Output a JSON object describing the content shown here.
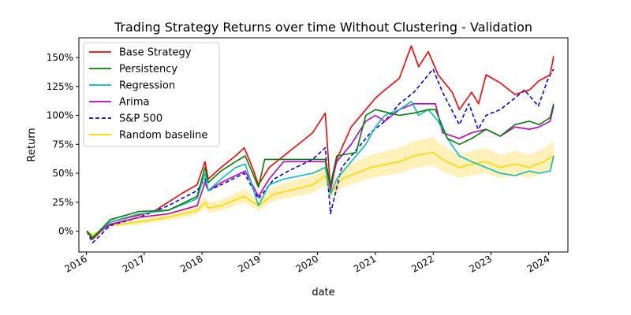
{
  "chart_data": {
    "type": "line",
    "title": "Trading Strategy Returns over time Without Clustering - Validation",
    "xlabel": "date",
    "ylabel": "Return",
    "x_range": [
      "2015-11-15",
      "2024-05-01"
    ],
    "ylim": [
      -0.18,
      1.67
    ],
    "x_ticks": [
      "2016",
      "2017",
      "2018",
      "2019",
      "2020",
      "2021",
      "2022",
      "2023",
      "2024"
    ],
    "y_ticks": [
      {
        "value": 0,
        "label": "0%"
      },
      {
        "value": 0.25,
        "label": "25%"
      },
      {
        "value": 0.5,
        "label": "50%"
      },
      {
        "value": 0.75,
        "label": "75%"
      },
      {
        "value": 1.0,
        "label": "100%"
      },
      {
        "value": 1.25,
        "label": "125%"
      },
      {
        "value": 1.5,
        "label": "150%"
      }
    ],
    "grid": false,
    "legend_position": "top-left",
    "series": [
      {
        "name": "Base Strategy",
        "color": "#ff0000",
        "style": "solid",
        "points": [
          [
            "2016-01-04",
            0.0
          ],
          [
            "2016-02-10",
            -0.07
          ],
          [
            "2016-06-01",
            0.08
          ],
          [
            "2016-12-01",
            0.14
          ],
          [
            "2017-03-01",
            0.17
          ],
          [
            "2017-06-01",
            0.25
          ],
          [
            "2017-09-01",
            0.33
          ],
          [
            "2017-12-01",
            0.4
          ],
          [
            "2018-01-20",
            0.6
          ],
          [
            "2018-02-10",
            0.45
          ],
          [
            "2018-05-01",
            0.55
          ],
          [
            "2018-08-01",
            0.65
          ],
          [
            "2018-09-25",
            0.72
          ],
          [
            "2018-11-15",
            0.55
          ],
          [
            "2018-12-24",
            0.4
          ],
          [
            "2019-03-01",
            0.55
          ],
          [
            "2019-06-01",
            0.65
          ],
          [
            "2019-09-01",
            0.75
          ],
          [
            "2019-12-01",
            0.85
          ],
          [
            "2020-02-19",
            1.02
          ],
          [
            "2020-03-23",
            0.35
          ],
          [
            "2020-05-01",
            0.62
          ],
          [
            "2020-08-01",
            0.9
          ],
          [
            "2020-11-01",
            1.05
          ],
          [
            "2021-01-01",
            1.15
          ],
          [
            "2021-03-01",
            1.22
          ],
          [
            "2021-06-01",
            1.32
          ],
          [
            "2021-08-15",
            1.6
          ],
          [
            "2021-10-01",
            1.42
          ],
          [
            "2021-12-01",
            1.55
          ],
          [
            "2022-02-01",
            1.35
          ],
          [
            "2022-05-01",
            1.2
          ],
          [
            "2022-06-15",
            1.05
          ],
          [
            "2022-09-01",
            1.2
          ],
          [
            "2022-10-15",
            1.1
          ],
          [
            "2022-12-01",
            1.35
          ],
          [
            "2023-03-01",
            1.28
          ],
          [
            "2023-06-01",
            1.18
          ],
          [
            "2023-09-01",
            1.22
          ],
          [
            "2023-11-01",
            1.3
          ],
          [
            "2024-01-10",
            1.35
          ],
          [
            "2024-02-01",
            1.51
          ]
        ]
      },
      {
        "name": "Persistency",
        "color": "#008000",
        "style": "solid",
        "points": [
          [
            "2016-01-04",
            0.0
          ],
          [
            "2016-02-10",
            -0.06
          ],
          [
            "2016-06-01",
            0.1
          ],
          [
            "2016-12-01",
            0.17
          ],
          [
            "2017-06-01",
            0.18
          ],
          [
            "2017-12-01",
            0.3
          ],
          [
            "2018-01-20",
            0.55
          ],
          [
            "2018-02-10",
            0.42
          ],
          [
            "2018-05-01",
            0.52
          ],
          [
            "2018-08-01",
            0.6
          ],
          [
            "2018-10-01",
            0.65
          ],
          [
            "2018-12-24",
            0.38
          ],
          [
            "2019-02-01",
            0.62
          ],
          [
            "2019-06-01",
            0.62
          ],
          [
            "2020-02-19",
            0.62
          ],
          [
            "2020-03-23",
            0.4
          ],
          [
            "2020-05-01",
            0.65
          ],
          [
            "2020-09-01",
            0.68
          ],
          [
            "2020-11-01",
            1.0
          ],
          [
            "2021-01-01",
            1.05
          ],
          [
            "2021-06-01",
            1.0
          ],
          [
            "2021-09-01",
            1.02
          ],
          [
            "2021-12-01",
            1.05
          ],
          [
            "2022-01-15",
            1.05
          ],
          [
            "2022-04-01",
            0.8
          ],
          [
            "2022-06-15",
            0.75
          ],
          [
            "2022-09-01",
            0.8
          ],
          [
            "2022-12-01",
            0.88
          ],
          [
            "2023-03-01",
            0.82
          ],
          [
            "2023-06-01",
            0.92
          ],
          [
            "2023-09-01",
            0.95
          ],
          [
            "2023-11-01",
            0.92
          ],
          [
            "2024-01-10",
            0.98
          ],
          [
            "2024-02-01",
            1.1
          ]
        ]
      },
      {
        "name": "Regression",
        "color": "#00bfbf",
        "style": "solid",
        "points": [
          [
            "2016-01-04",
            0.0
          ],
          [
            "2016-02-10",
            -0.05
          ],
          [
            "2016-06-01",
            0.08
          ],
          [
            "2016-12-01",
            0.15
          ],
          [
            "2017-06-01",
            0.18
          ],
          [
            "2017-12-01",
            0.28
          ],
          [
            "2018-01-20",
            0.5
          ],
          [
            "2018-02-10",
            0.35
          ],
          [
            "2018-05-01",
            0.45
          ],
          [
            "2018-08-01",
            0.55
          ],
          [
            "2018-10-01",
            0.58
          ],
          [
            "2018-12-24",
            0.22
          ],
          [
            "2019-03-01",
            0.4
          ],
          [
            "2019-06-01",
            0.45
          ],
          [
            "2019-12-01",
            0.5
          ],
          [
            "2020-02-19",
            0.55
          ],
          [
            "2020-03-23",
            0.32
          ],
          [
            "2020-05-01",
            0.45
          ],
          [
            "2020-08-01",
            0.6
          ],
          [
            "2020-11-01",
            0.75
          ],
          [
            "2021-01-01",
            0.9
          ],
          [
            "2021-03-01",
            1.0
          ],
          [
            "2021-06-01",
            1.05
          ],
          [
            "2021-08-15",
            1.12
          ],
          [
            "2021-10-01",
            1.0
          ],
          [
            "2021-12-01",
            1.05
          ],
          [
            "2022-02-01",
            0.95
          ],
          [
            "2022-04-01",
            0.8
          ],
          [
            "2022-06-15",
            0.65
          ],
          [
            "2022-09-01",
            0.6
          ],
          [
            "2022-12-01",
            0.55
          ],
          [
            "2023-03-01",
            0.5
          ],
          [
            "2023-06-01",
            0.48
          ],
          [
            "2023-09-01",
            0.52
          ],
          [
            "2023-11-01",
            0.5
          ],
          [
            "2024-01-10",
            0.52
          ],
          [
            "2024-02-01",
            0.65
          ]
        ]
      },
      {
        "name": "Arima",
        "color": "#bf00bf",
        "style": "solid",
        "points": [
          [
            "2016-01-04",
            0.0
          ],
          [
            "2016-02-10",
            -0.05
          ],
          [
            "2016-06-01",
            0.06
          ],
          [
            "2016-12-01",
            0.12
          ],
          [
            "2017-06-01",
            0.15
          ],
          [
            "2017-12-01",
            0.22
          ],
          [
            "2018-01-20",
            0.42
          ],
          [
            "2018-02-10",
            0.35
          ],
          [
            "2018-05-01",
            0.42
          ],
          [
            "2018-08-01",
            0.48
          ],
          [
            "2018-10-01",
            0.52
          ],
          [
            "2018-12-24",
            0.3
          ],
          [
            "2019-03-01",
            0.45
          ],
          [
            "2019-06-01",
            0.6
          ],
          [
            "2020-02-19",
            0.6
          ],
          [
            "2020-03-23",
            0.38
          ],
          [
            "2020-05-01",
            0.6
          ],
          [
            "2020-08-01",
            0.75
          ],
          [
            "2020-11-01",
            0.95
          ],
          [
            "2021-01-01",
            1.0
          ],
          [
            "2021-03-01",
            0.95
          ],
          [
            "2021-06-01",
            1.05
          ],
          [
            "2021-09-01",
            1.1
          ],
          [
            "2022-01-15",
            1.1
          ],
          [
            "2022-03-01",
            0.85
          ],
          [
            "2022-06-15",
            0.8
          ],
          [
            "2022-09-01",
            0.85
          ],
          [
            "2022-12-01",
            0.88
          ],
          [
            "2023-03-01",
            0.82
          ],
          [
            "2023-06-01",
            0.9
          ],
          [
            "2023-09-01",
            0.88
          ],
          [
            "2023-11-01",
            0.9
          ],
          [
            "2024-01-10",
            0.95
          ],
          [
            "2024-02-01",
            1.08
          ]
        ]
      },
      {
        "name": "S&P 500",
        "color": "#0000ff",
        "style": "dashed",
        "points": [
          [
            "2016-01-04",
            0.0
          ],
          [
            "2016-02-10",
            -0.1
          ],
          [
            "2016-06-01",
            0.05
          ],
          [
            "2016-12-01",
            0.12
          ],
          [
            "2017-06-01",
            0.22
          ],
          [
            "2017-12-01",
            0.35
          ],
          [
            "2018-01-20",
            0.45
          ],
          [
            "2018-02-10",
            0.35
          ],
          [
            "2018-05-01",
            0.4
          ],
          [
            "2018-09-25",
            0.5
          ],
          [
            "2018-12-24",
            0.28
          ],
          [
            "2019-04-01",
            0.45
          ],
          [
            "2019-07-01",
            0.52
          ],
          [
            "2019-12-01",
            0.62
          ],
          [
            "2020-02-19",
            0.72
          ],
          [
            "2020-03-23",
            0.15
          ],
          [
            "2020-06-01",
            0.55
          ],
          [
            "2020-09-01",
            0.7
          ],
          [
            "2020-12-01",
            0.85
          ],
          [
            "2021-03-01",
            0.95
          ],
          [
            "2021-06-01",
            1.1
          ],
          [
            "2021-09-01",
            1.2
          ],
          [
            "2021-12-31",
            1.4
          ],
          [
            "2022-03-01",
            1.2
          ],
          [
            "2022-06-15",
            0.92
          ],
          [
            "2022-08-15",
            1.1
          ],
          [
            "2022-10-12",
            0.88
          ],
          [
            "2022-12-01",
            1.0
          ],
          [
            "2023-03-01",
            1.05
          ],
          [
            "2023-06-01",
            1.15
          ],
          [
            "2023-07-31",
            1.22
          ],
          [
            "2023-10-27",
            1.08
          ],
          [
            "2023-12-29",
            1.32
          ],
          [
            "2024-02-01",
            1.4
          ]
        ]
      },
      {
        "name": "Random baseline",
        "color": "#ffd700",
        "style": "solid",
        "band_color": "#ffe680",
        "points": [
          [
            "2016-01-04",
            0.0
          ],
          [
            "2016-02-10",
            -0.03
          ],
          [
            "2016-06-01",
            0.05
          ],
          [
            "2016-12-01",
            0.08
          ],
          [
            "2017-06-01",
            0.12
          ],
          [
            "2017-12-01",
            0.18
          ],
          [
            "2018-01-20",
            0.25
          ],
          [
            "2018-02-10",
            0.2
          ],
          [
            "2018-05-01",
            0.22
          ],
          [
            "2018-09-25",
            0.3
          ],
          [
            "2018-12-24",
            0.22
          ],
          [
            "2019-04-01",
            0.32
          ],
          [
            "2019-12-01",
            0.4
          ],
          [
            "2020-02-19",
            0.48
          ],
          [
            "2020-03-23",
            0.32
          ],
          [
            "2020-06-01",
            0.45
          ],
          [
            "2020-12-01",
            0.55
          ],
          [
            "2021-06-01",
            0.6
          ],
          [
            "2021-09-01",
            0.65
          ],
          [
            "2021-12-31",
            0.68
          ],
          [
            "2022-03-01",
            0.62
          ],
          [
            "2022-06-15",
            0.55
          ],
          [
            "2022-09-01",
            0.58
          ],
          [
            "2022-12-01",
            0.6
          ],
          [
            "2023-03-01",
            0.55
          ],
          [
            "2023-06-01",
            0.58
          ],
          [
            "2023-09-01",
            0.55
          ],
          [
            "2023-12-01",
            0.6
          ],
          [
            "2024-02-01",
            0.65
          ]
        ]
      }
    ]
  }
}
